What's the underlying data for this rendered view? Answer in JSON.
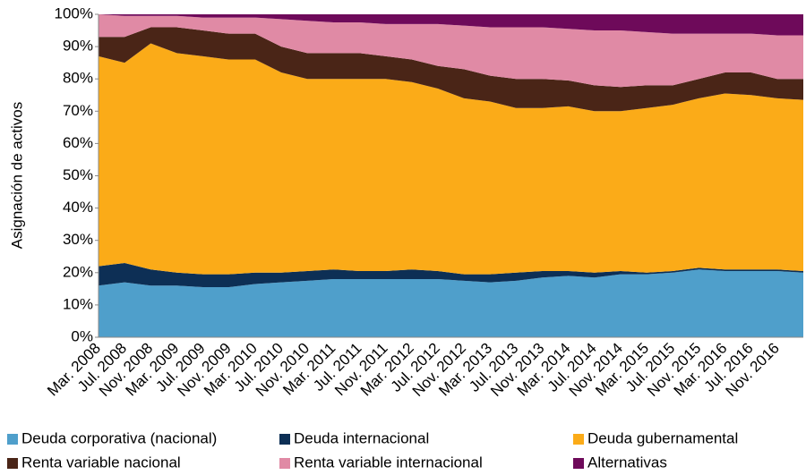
{
  "chart_data": {
    "type": "stacked_area",
    "y_label": "Asignación de activos",
    "categories": [
      "Mar. 2008",
      "Jul. 2008",
      "Nov. 2008",
      "Mar. 2009",
      "Jul. 2009",
      "Nov. 2009",
      "Mar. 2010",
      "Jul. 2010",
      "Nov. 2010",
      "Mar. 2011",
      "Jul. 2011",
      "Nov. 2011",
      "Mar. 2012",
      "Jul. 2012",
      "Nov. 2012",
      "Mar. 2013",
      "Jul. 2013",
      "Nov. 2013",
      "Mar. 2014",
      "Jul. 2014",
      "Nov. 2014",
      "Mar. 2015",
      "Jul. 2015",
      "Nov. 2015",
      "Mar. 2016",
      "Jul. 2016",
      "Nov. 2016",
      null
    ],
    "series": [
      {
        "name": "Deuda corporativa (nacional)",
        "color": "#4f9fcb",
        "values": [
          16,
          17,
          16,
          16,
          15.5,
          15.5,
          16.5,
          17,
          17.5,
          18,
          18,
          18,
          18,
          18,
          17.5,
          17,
          17.5,
          18.5,
          19,
          18.5,
          19.5,
          19.5,
          20,
          21,
          20.5,
          20.5,
          20.5,
          20
        ]
      },
      {
        "name": "Deuda internacional",
        "color": "#0d2f55",
        "values": [
          6,
          6,
          5,
          4,
          4,
          4,
          3.5,
          3,
          3,
          3,
          2.5,
          2.5,
          3,
          2.5,
          2,
          2.5,
          2.5,
          2,
          1.5,
          1.5,
          1,
          0.5,
          0.5,
          0.5,
          0.5,
          0.5,
          0.5,
          0.5
        ]
      },
      {
        "name": "Deuda gubernamental",
        "color": "#fbab18",
        "values": [
          65,
          62,
          70,
          68,
          67.5,
          66.5,
          66,
          62,
          59.5,
          59,
          59.5,
          59.5,
          58,
          56.5,
          54.5,
          53.5,
          51,
          50.5,
          51,
          50,
          49.5,
          51,
          51.5,
          52.5,
          54.5,
          54,
          53,
          53
        ]
      },
      {
        "name": "Renta variable nacional",
        "color": "#4a2517",
        "values": [
          6,
          8,
          5,
          8,
          8,
          8,
          8,
          8,
          8,
          8,
          8,
          7,
          7,
          7,
          9,
          8,
          9,
          9,
          8,
          8,
          7.5,
          7,
          6,
          6,
          6.5,
          7,
          6,
          6.5
        ]
      },
      {
        "name": "Renta variable internacional",
        "color": "#e08aa5",
        "values": [
          7,
          6.5,
          3.5,
          3.5,
          4,
          5,
          5,
          8.5,
          10,
          9.5,
          9.5,
          10,
          11,
          13,
          13.5,
          15,
          16,
          16,
          16,
          17,
          17.5,
          16.5,
          16,
          14,
          12,
          12,
          13.5,
          13.5
        ]
      },
      {
        "name": "Alternativas",
        "color": "#6e0a5a",
        "values": [
          0,
          0.5,
          0.5,
          0.5,
          1,
          1,
          1,
          1.5,
          2,
          2.5,
          2.5,
          3,
          3,
          3,
          3.5,
          4,
          4,
          4,
          4.5,
          5,
          5,
          5.5,
          6,
          6,
          6,
          6,
          6.5,
          6.5
        ]
      }
    ],
    "ylim": [
      0,
      100
    ],
    "yticks": [
      {
        "value": 0,
        "label": "0%"
      },
      {
        "value": 10,
        "label": "10%"
      },
      {
        "value": 20,
        "label": "20%"
      },
      {
        "value": 30,
        "label": "30%"
      },
      {
        "value": 40,
        "label": "40%"
      },
      {
        "value": 50,
        "label": "50%"
      },
      {
        "value": 60,
        "label": "60%"
      },
      {
        "value": 70,
        "label": "70%"
      },
      {
        "value": 80,
        "label": "80%"
      },
      {
        "value": 90,
        "label": "90%"
      },
      {
        "value": 100,
        "label": "100%"
      }
    ]
  }
}
